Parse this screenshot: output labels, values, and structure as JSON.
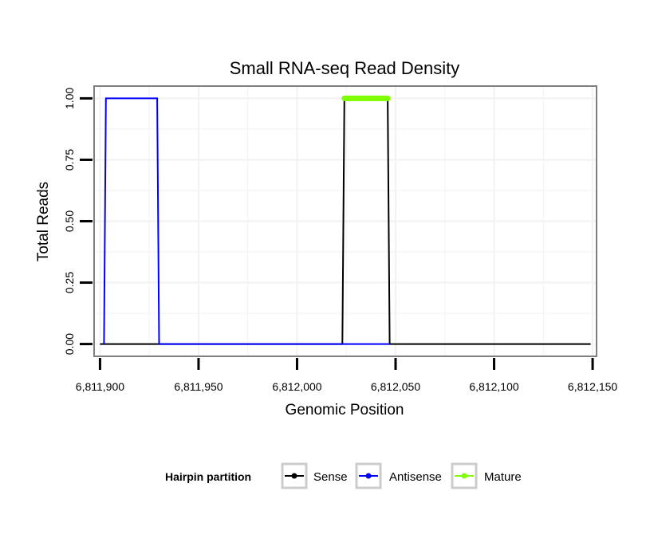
{
  "chart_data": {
    "type": "line",
    "title": "Small RNA-seq Read Density",
    "xlabel": "Genomic Position",
    "ylabel": "Total Reads",
    "xlim": [
      6811897,
      6812152
    ],
    "ylim": [
      -0.05,
      1.05
    ],
    "x_ticks": [
      6811900,
      6811950,
      6812000,
      6812050,
      6812100,
      6812150
    ],
    "x_tick_labels": [
      "6,811,900",
      "6,811,950",
      "6,812,000",
      "6,812,050",
      "6,812,100",
      "6,812,150"
    ],
    "y_ticks": [
      0,
      0.25,
      0.5,
      0.75,
      1.0
    ],
    "y_tick_labels": [
      "0.00",
      "0.25",
      "0.50",
      "0.75",
      "1.00"
    ],
    "grid": true,
    "legend": {
      "title": "Hairpin partition",
      "position": "bottom",
      "entries": [
        "Sense",
        "Antisense",
        "Mature"
      ]
    },
    "colors": {
      "Sense": "#000000",
      "Antisense": "#0000ff",
      "Mature": "#7fff00",
      "panel_border": "#7f7f7f",
      "grid": "#f2f2f2",
      "legend_key_border": "#cccccc"
    },
    "series": [
      {
        "name": "Sense",
        "x": [
          6811900,
          6812023,
          6812024,
          6812046,
          6812047,
          6812149
        ],
        "y": [
          0,
          0,
          1,
          1,
          0,
          0
        ]
      },
      {
        "name": "Antisense",
        "x": [
          6811902,
          6811903,
          6811929,
          6811930,
          6812023,
          6812047
        ],
        "y": [
          0,
          1,
          1,
          0,
          0,
          0
        ]
      },
      {
        "name": "Mature",
        "x": [
          6812024,
          6812046
        ],
        "y": [
          1,
          1
        ]
      }
    ]
  }
}
